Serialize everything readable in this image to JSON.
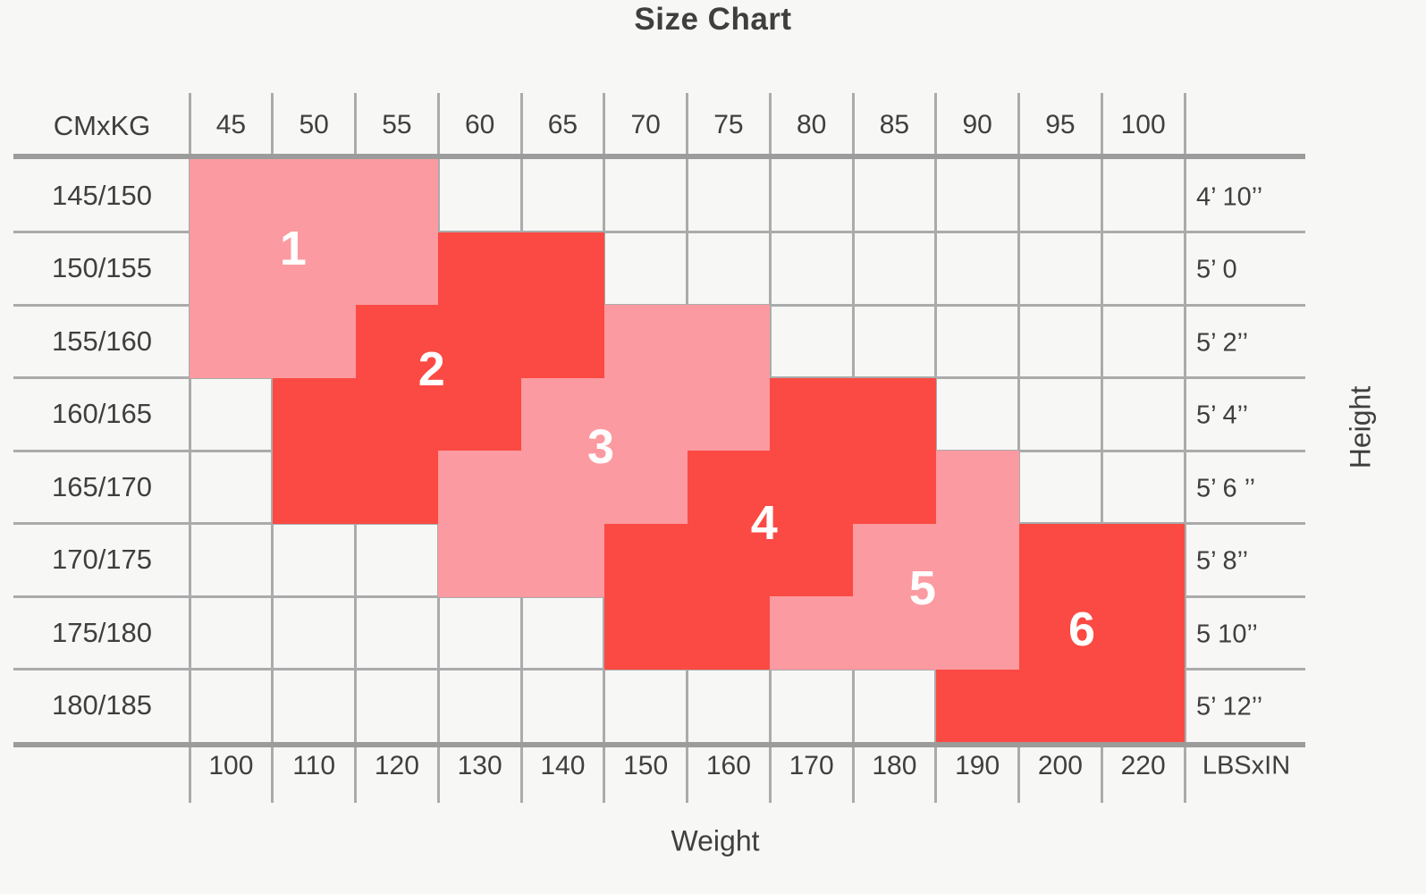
{
  "title": "Size Chart",
  "axes": {
    "x_label": "Weight",
    "y_label": "Height"
  },
  "corner_labels": {
    "top_left": "CMxKG",
    "bottom_right": "LBSxIN"
  },
  "colors": {
    "background": "#F7F7F6",
    "pink": "#FB9AA0",
    "red": "#FB4A43",
    "grid": "#ABABAB",
    "grid_strong": "#9C9C9C",
    "text": "#3F3F3F",
    "size_label": "#FFFFFF"
  },
  "chart_data": {
    "type": "heatmap",
    "title": "Size Chart",
    "xlabel": "Weight",
    "ylabel": "Height",
    "legend_position": "none",
    "grid": true,
    "weight_kg_headers": [
      "45",
      "50",
      "55",
      "60",
      "65",
      "70",
      "75",
      "80",
      "85",
      "90",
      "95",
      "100"
    ],
    "weight_lbs_footers": [
      "100",
      "110",
      "120",
      "130",
      "140",
      "150",
      "160",
      "170",
      "180",
      "190",
      "200",
      "220"
    ],
    "height_cm_rows": [
      "145/150",
      "150/155",
      "155/160",
      "160/165",
      "165/170",
      "170/175",
      "175/180",
      "180/185"
    ],
    "height_in_rows": [
      "4’ 10’’",
      "5’ 0",
      "5’ 2’’",
      "5’ 4’’",
      "5’ 6 ’’",
      "5’ 8’’",
      "5 10’’",
      "5’ 12’’"
    ],
    "sizes": [
      {
        "size": "1",
        "tone": "pink",
        "cells": [
          {
            "row": 0,
            "col_start": 0,
            "col_end": 2
          },
          {
            "row": 1,
            "col_start": 0,
            "col_end": 2
          },
          {
            "row": 2,
            "col_start": 0,
            "col_end": 1
          }
        ],
        "label_anchor": {
          "col": 1.25,
          "row": 1.23
        }
      },
      {
        "size": "2",
        "tone": "red",
        "cells": [
          {
            "row": 1,
            "col_start": 3,
            "col_end": 4
          },
          {
            "row": 2,
            "col_start": 2,
            "col_end": 4
          },
          {
            "row": 3,
            "col_start": 1,
            "col_end": 3
          },
          {
            "row": 4,
            "col_start": 1,
            "col_end": 2
          }
        ],
        "label_anchor": {
          "col": 2.92,
          "row": 2.88
        }
      },
      {
        "size": "3",
        "tone": "pink",
        "cells": [
          {
            "row": 2,
            "col_start": 5,
            "col_end": 6
          },
          {
            "row": 3,
            "col_start": 4,
            "col_end": 6
          },
          {
            "row": 4,
            "col_start": 3,
            "col_end": 5
          },
          {
            "row": 5,
            "col_start": 3,
            "col_end": 4
          }
        ],
        "label_anchor": {
          "col": 4.96,
          "row": 3.95
        }
      },
      {
        "size": "4",
        "tone": "red",
        "cells": [
          {
            "row": 3,
            "col_start": 7,
            "col_end": 8
          },
          {
            "row": 4,
            "col_start": 6,
            "col_end": 8
          },
          {
            "row": 5,
            "col_start": 5,
            "col_end": 7
          },
          {
            "row": 6,
            "col_start": 5,
            "col_end": 6
          }
        ],
        "label_anchor": {
          "col": 6.93,
          "row": 4.99
        }
      },
      {
        "size": "5",
        "tone": "pink",
        "cells": [
          {
            "row": 4,
            "col_start": 9,
            "col_end": 9
          },
          {
            "row": 5,
            "col_start": 8,
            "col_end": 9
          },
          {
            "row": 6,
            "col_start": 7,
            "col_end": 9
          }
        ],
        "label_anchor": {
          "col": 8.84,
          "row": 5.89
        }
      },
      {
        "size": "6",
        "tone": "red",
        "cells": [
          {
            "row": 5,
            "col_start": 10,
            "col_end": 11
          },
          {
            "row": 6,
            "col_start": 10,
            "col_end": 11
          },
          {
            "row": 7,
            "col_start": 9,
            "col_end": 11
          }
        ],
        "label_anchor": {
          "col": 10.76,
          "row": 6.45
        }
      }
    ]
  }
}
